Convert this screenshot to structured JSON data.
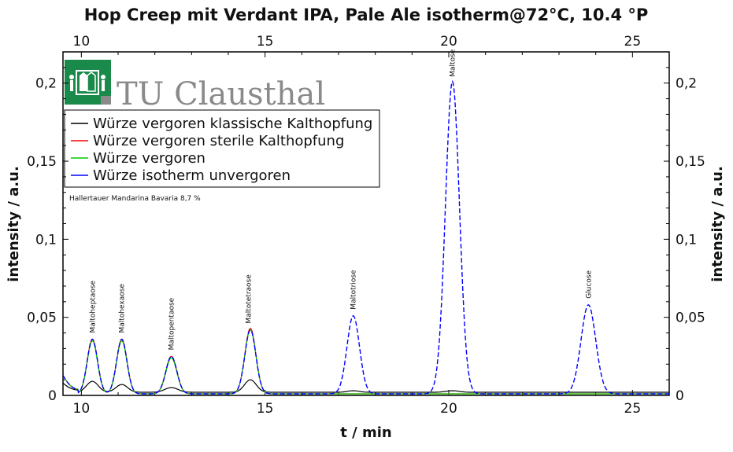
{
  "chart_data": {
    "type": "line",
    "title": "Hop Creep mit Verdant IPA, Pale Ale isotherm@72°C, 10.4 °P",
    "xlabel": "t / min",
    "ylabel": "intensity / a.u.",
    "ylabel_right": "intensity / a.u.",
    "xlim": [
      9.5,
      26.0
    ],
    "ylim": [
      0,
      0.22
    ],
    "x_ticks": [
      10,
      15,
      20,
      25
    ],
    "x_tick_labels": [
      "10",
      "15",
      "20",
      "25"
    ],
    "y_ticks": [
      0,
      0.05,
      0.1,
      0.15,
      0.2
    ],
    "y_tick_labels": [
      "0",
      "0,05",
      "0,1",
      "0,15",
      "0,2"
    ],
    "grid": false,
    "legend_position": "top-left",
    "annotation": "Hallertauer Mandarina Bavaria 8,7 %",
    "logo_text": "TU Clausthal",
    "peak_labels": [
      {
        "text": "Maltoheptaose",
        "x": 10.3,
        "y": 0.036
      },
      {
        "text": "Maltohexaose",
        "x": 11.1,
        "y": 0.036
      },
      {
        "text": "Maltopentaose",
        "x": 12.45,
        "y": 0.025
      },
      {
        "text": "Maltotetraose",
        "x": 14.55,
        "y": 0.042
      },
      {
        "text": "Maltotriose",
        "x": 17.4,
        "y": 0.051
      },
      {
        "text": "Maltose",
        "x": 20.1,
        "y": 0.2
      },
      {
        "text": "Glucose",
        "x": 23.8,
        "y": 0.058
      }
    ],
    "series": [
      {
        "name": "Würze vergoren klassische Kalthopfung",
        "color": "#000000",
        "baseline": 0.002,
        "peaks": [
          {
            "x": 10.3,
            "height": 0.007,
            "width": 0.16
          },
          {
            "x": 11.1,
            "height": 0.005,
            "width": 0.16
          },
          {
            "x": 12.45,
            "height": 0.003,
            "width": 0.18
          },
          {
            "x": 14.6,
            "height": 0.008,
            "width": 0.16
          },
          {
            "x": 17.4,
            "height": 0.001,
            "width": 0.16
          },
          {
            "x": 20.1,
            "height": 0.001,
            "width": 0.18
          }
        ]
      },
      {
        "name": "Würze vergoren sterile Kalthopfung",
        "color": "#ff0000",
        "baseline": 0.001,
        "peaks": [
          {
            "x": 10.3,
            "height": 0.035,
            "width": 0.14
          },
          {
            "x": 11.1,
            "height": 0.035,
            "width": 0.14
          },
          {
            "x": 12.45,
            "height": 0.024,
            "width": 0.15
          },
          {
            "x": 14.6,
            "height": 0.042,
            "width": 0.15
          }
        ]
      },
      {
        "name": "Würze vergoren",
        "color": "#00cc00",
        "baseline": 0.001,
        "peaks": [
          {
            "x": 10.3,
            "height": 0.034,
            "width": 0.14
          },
          {
            "x": 11.1,
            "height": 0.034,
            "width": 0.14
          },
          {
            "x": 12.45,
            "height": 0.023,
            "width": 0.15
          },
          {
            "x": 14.6,
            "height": 0.041,
            "width": 0.15
          }
        ]
      },
      {
        "name": "Würze isotherm unvergoren",
        "color": "#0000ff",
        "baseline": 0.001,
        "peaks": [
          {
            "x": 10.3,
            "height": 0.035,
            "width": 0.14
          },
          {
            "x": 11.1,
            "height": 0.035,
            "width": 0.14
          },
          {
            "x": 12.45,
            "height": 0.024,
            "width": 0.15
          },
          {
            "x": 14.6,
            "height": 0.041,
            "width": 0.15
          },
          {
            "x": 17.4,
            "height": 0.05,
            "width": 0.17
          },
          {
            "x": 20.1,
            "height": 0.2,
            "width": 0.19
          },
          {
            "x": 23.8,
            "height": 0.057,
            "width": 0.2
          }
        ]
      }
    ]
  }
}
